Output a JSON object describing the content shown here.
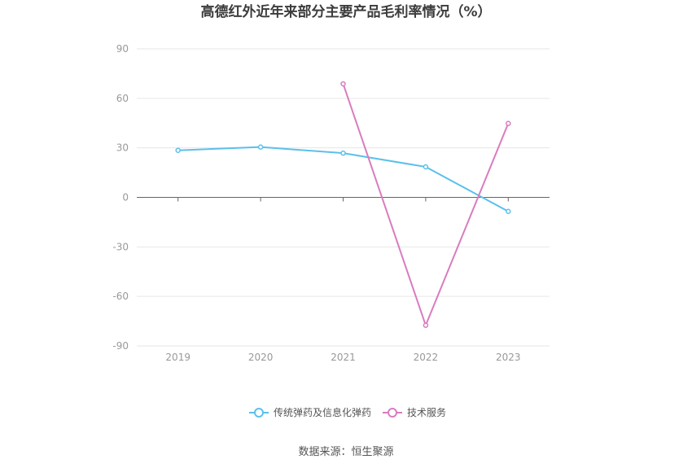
{
  "chart_data": {
    "type": "line",
    "title": "高德红外近年来部分主要产品毛利率情况（%）",
    "categories": [
      "2019",
      "2020",
      "2021",
      "2022",
      "2023"
    ],
    "ylim": [
      -90,
      90
    ],
    "yticks": [
      90,
      60,
      30,
      0,
      -30,
      -60,
      -90
    ],
    "grid": true,
    "legend_position": "bottom",
    "series": [
      {
        "name": "传统弹药及信息化弹药",
        "color": "#5bc0eb",
        "values": [
          28.5,
          30.5,
          26.8,
          18.5,
          -8.5
        ]
      },
      {
        "name": "技术服务",
        "color": "#d97cbf",
        "values": [
          null,
          null,
          68.8,
          -77.5,
          44.8
        ]
      }
    ],
    "source": "数据来源：恒生聚源"
  }
}
